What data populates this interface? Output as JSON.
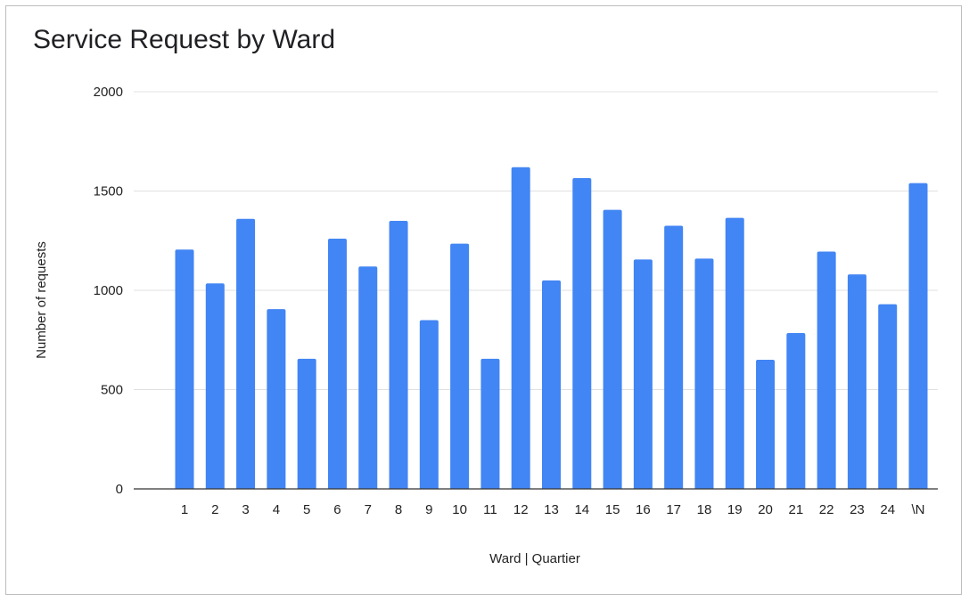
{
  "chart_data": {
    "type": "bar",
    "title": "Service Request by Ward",
    "xlabel": "Ward | Quartier",
    "ylabel": "Number of requests",
    "ylim": [
      0,
      2000
    ],
    "yticks": [
      "0",
      "500",
      "1000",
      "1500",
      "2000"
    ],
    "grid": true,
    "bar_color": "#4285f4",
    "categories": [
      "1",
      "2",
      "3",
      "4",
      "5",
      "6",
      "7",
      "8",
      "9",
      "10",
      "11",
      "12",
      "13",
      "14",
      "15",
      "16",
      "17",
      "18",
      "19",
      "20",
      "21",
      "22",
      "23",
      "24",
      "\\N"
    ],
    "values": [
      1205,
      1035,
      1360,
      905,
      655,
      1260,
      1120,
      1350,
      850,
      1235,
      655,
      1620,
      1050,
      1565,
      1405,
      1155,
      1325,
      1160,
      1365,
      650,
      785,
      1195,
      1080,
      930,
      1540
    ]
  }
}
